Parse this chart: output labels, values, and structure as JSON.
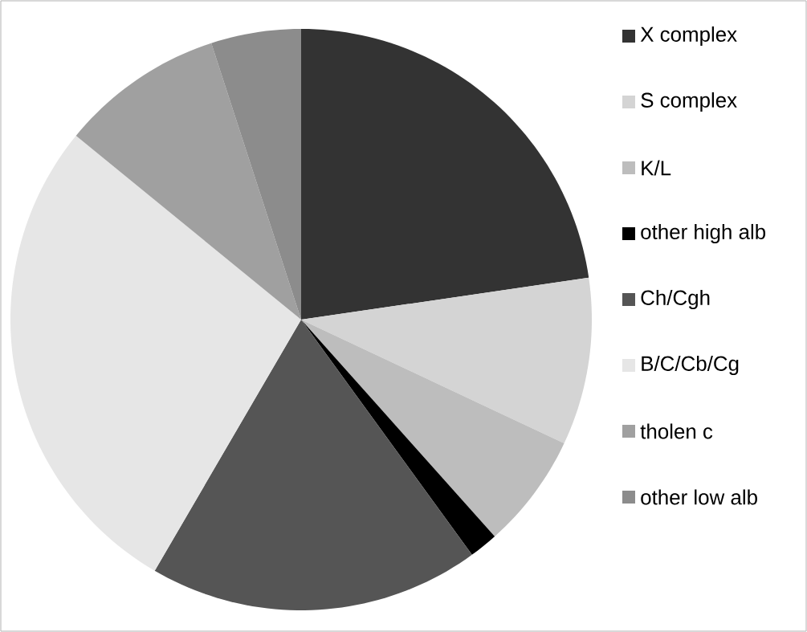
{
  "chart_data": {
    "type": "pie",
    "categories": [
      "X complex",
      "S complex",
      "K/L",
      "other high alb",
      "Ch/Cgh",
      "B/C/Cb/Cg",
      "tholen c",
      "other low alb"
    ],
    "values": [
      22.7,
      9.3,
      6.4,
      1.6,
      18.4,
      27.5,
      9.1,
      5.0
    ],
    "colors": [
      "#333333",
      "#d4d4d4",
      "#bdbdbd",
      "#000000",
      "#555555",
      "#e6e6e6",
      "#a0a0a0",
      "#8c8c8c"
    ],
    "legend": "right"
  }
}
